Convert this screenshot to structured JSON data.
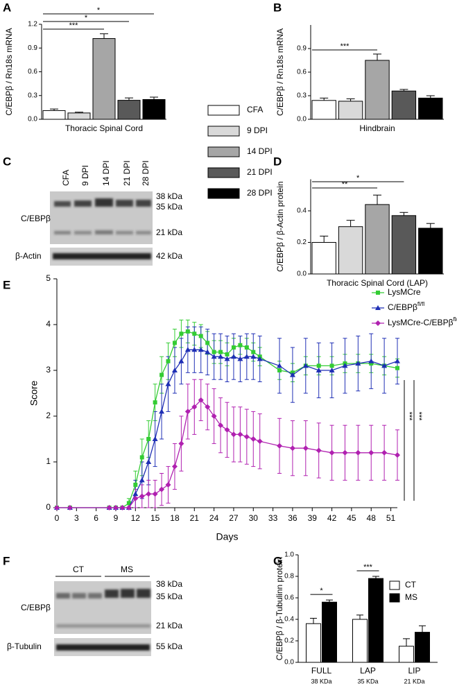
{
  "panel_labels": [
    "A",
    "B",
    "C",
    "D",
    "E",
    "F",
    "G"
  ],
  "chart_data": [
    {
      "type": "bar",
      "ylabel": "C/EBPβ / Rn18s mRNA",
      "xlabel": "Thoracic Spinal Cord",
      "categories": [
        "CFA",
        "9 DPI",
        "14 DPI",
        "21 DPI",
        "28 DPI"
      ],
      "colors": [
        "#ffffff",
        "#d9d9d9",
        "#a6a6a6",
        "#595959",
        "#000000"
      ],
      "values": [
        0.11,
        0.08,
        1.02,
        0.24,
        0.25
      ],
      "errors": [
        0.02,
        0.01,
        0.06,
        0.03,
        0.03
      ],
      "ylim": [
        0,
        1.2
      ],
      "yticks": [
        {
          "value": 0,
          "label": "0.0"
        },
        0.3,
        0.6,
        0.9,
        1.2
      ],
      "significance": [
        {
          "from": 0,
          "to": 2,
          "label": "***"
        },
        {
          "from": 0,
          "to": 3,
          "label": "*"
        },
        {
          "from": 0,
          "to": 4,
          "label": "*"
        }
      ]
    },
    {
      "type": "bar",
      "ylabel": "C/EBPβ / Rn18s mRNA",
      "xlabel": "Hindbrain",
      "colors": [
        "#ffffff",
        "#d9d9d9",
        "#a6a6a6",
        "#595959",
        "#000000"
      ],
      "values": [
        0.24,
        0.23,
        0.75,
        0.36,
        0.27
      ],
      "errors": [
        0.03,
        0.03,
        0.08,
        0.02,
        0.03
      ],
      "ylim": [
        0,
        1.2
      ],
      "yticks": [
        {
          "value": 0,
          "label": "0.0"
        },
        0.3,
        0.6,
        0.9
      ],
      "significance": [
        {
          "from": 0,
          "to": 2,
          "label": "***"
        }
      ]
    },
    {
      "type": "bar",
      "ylabel": "C/EBPβ / β-Actin protein",
      "xlabel": "Thoracic Spinal Cord (LAP)",
      "colors": [
        "#ffffff",
        "#d9d9d9",
        "#a6a6a6",
        "#595959",
        "#000000"
      ],
      "values": [
        0.2,
        0.3,
        0.44,
        0.37,
        0.29
      ],
      "errors": [
        0.04,
        0.04,
        0.06,
        0.02,
        0.03
      ],
      "ylim": [
        0,
        0.6
      ],
      "yticks": [
        {
          "value": 0,
          "label": "0.0"
        },
        0.2,
        0.4
      ],
      "significance": [
        {
          "from": 0,
          "to": 2,
          "label": "**"
        },
        {
          "from": 0,
          "to": 3,
          "label": "*"
        }
      ]
    },
    {
      "type": "line",
      "xlabel": "Days",
      "ylabel": "Score",
      "x": [
        0,
        2,
        8,
        9,
        10,
        11,
        12,
        13,
        14,
        15,
        16,
        17,
        18,
        19,
        20,
        21,
        22,
        23,
        24,
        25,
        26,
        27,
        28,
        29,
        30,
        31,
        34,
        36,
        38,
        40,
        42,
        44,
        46,
        48,
        50,
        52
      ],
      "xlim": [
        0,
        52
      ],
      "xticks": [
        0,
        3,
        6,
        9,
        12,
        15,
        18,
        21,
        24,
        27,
        30,
        33,
        36,
        39,
        42,
        45,
        48,
        51
      ],
      "ylim": [
        0,
        5
      ],
      "yticks": [
        0,
        1,
        2,
        3,
        4,
        5
      ],
      "series": [
        {
          "name": "LysMCre",
          "color": "#33cc33",
          "marker": "square",
          "values": [
            0,
            0,
            0,
            0,
            0,
            0.1,
            0.5,
            1.1,
            1.5,
            2.3,
            2.9,
            3.2,
            3.6,
            3.8,
            3.85,
            3.8,
            3.75,
            3.6,
            3.4,
            3.4,
            3.35,
            3.5,
            3.55,
            3.5,
            3.4,
            3.3,
            3.0,
            2.95,
            3.1,
            3.1,
            3.1,
            3.15,
            3.15,
            3.15,
            3.1,
            3.05
          ],
          "errors": [
            0,
            0,
            0,
            0,
            0,
            0.1,
            0.3,
            0.4,
            0.4,
            0.4,
            0.4,
            0.4,
            0.3,
            0.3,
            0.25,
            0.25,
            0.25,
            0.25,
            0.25,
            0.25,
            0.25,
            0.2,
            0.2,
            0.2,
            0.2,
            0.2,
            0.2,
            0.2,
            0.2,
            0.2,
            0.2,
            0.2,
            0.2,
            0.2,
            0.2,
            0.2
          ]
        },
        {
          "name": "C/EBPβ",
          "name_superscript": "fl/fl",
          "color": "#1f2fb5",
          "marker": "triangle",
          "values": [
            0,
            0,
            0,
            0,
            0,
            0,
            0.3,
            0.6,
            1.0,
            1.5,
            2.1,
            2.7,
            3.0,
            3.2,
            3.45,
            3.45,
            3.45,
            3.4,
            3.3,
            3.3,
            3.25,
            3.3,
            3.25,
            3.3,
            3.3,
            3.25,
            3.1,
            2.9,
            3.1,
            3.0,
            3.0,
            3.1,
            3.15,
            3.2,
            3.1,
            3.2
          ],
          "errors": [
            0,
            0,
            0,
            0,
            0,
            0,
            0.3,
            0.4,
            0.5,
            0.6,
            0.6,
            0.6,
            0.5,
            0.5,
            0.5,
            0.5,
            0.5,
            0.5,
            0.5,
            0.5,
            0.5,
            0.5,
            0.5,
            0.5,
            0.5,
            0.5,
            0.6,
            0.6,
            0.6,
            0.6,
            0.6,
            0.6,
            0.6,
            0.6,
            0.6,
            0.5
          ]
        },
        {
          "name": "LysMCre-C/EBPβ",
          "name_superscript": "fl/fl",
          "color": "#b020b0",
          "marker": "diamond",
          "values": [
            0,
            0,
            0,
            0,
            0,
            0,
            0.2,
            0.25,
            0.3,
            0.3,
            0.4,
            0.5,
            0.9,
            1.4,
            2.1,
            2.2,
            2.35,
            2.2,
            2.0,
            1.8,
            1.7,
            1.6,
            1.6,
            1.55,
            1.5,
            1.45,
            1.35,
            1.3,
            1.3,
            1.25,
            1.2,
            1.2,
            1.2,
            1.2,
            1.2,
            1.15
          ],
          "errors": [
            0,
            0,
            0,
            0,
            0,
            0,
            0.2,
            0.25,
            0.3,
            0.3,
            0.35,
            0.4,
            0.5,
            0.6,
            0.6,
            0.6,
            0.45,
            0.5,
            0.6,
            0.6,
            0.6,
            0.6,
            0.6,
            0.6,
            0.6,
            0.6,
            0.6,
            0.6,
            0.6,
            0.6,
            0.6,
            0.6,
            0.6,
            0.6,
            0.6,
            0.55
          ]
        }
      ],
      "significance": [
        "***",
        "***"
      ]
    },
    {
      "type": "grouped_bar",
      "ylabel": "C/EBPβ / β-Tubulinn protein",
      "categories": [
        "FULL",
        "LAP",
        "LIP"
      ],
      "category_sublabels": [
        "38 KDa",
        "35 KDa",
        "21 KDa"
      ],
      "series": [
        {
          "name": "CT",
          "color": "#ffffff",
          "values": [
            0.36,
            0.4,
            0.15
          ],
          "errors": [
            0.05,
            0.04,
            0.07
          ]
        },
        {
          "name": "MS",
          "color": "#000000",
          "values": [
            0.56,
            0.78,
            0.28
          ],
          "errors": [
            0.02,
            0.02,
            0.06
          ]
        }
      ],
      "ylim": [
        0,
        1
      ],
      "yticks": [
        {
          "value": 0,
          "label": "0.0"
        },
        0.2,
        0.4,
        0.6,
        0.8,
        {
          "value": 1,
          "label": "1.0"
        }
      ],
      "significance": [
        {
          "category": 0,
          "label": "*"
        },
        {
          "category": 1,
          "label": "***"
        }
      ]
    }
  ],
  "blots": [
    {
      "lanes": [
        "CFA",
        "9 DPI",
        "14 DPI",
        "21 DPI",
        "28 DPI"
      ],
      "rows": [
        "C/EBPβ",
        "β-Actin"
      ],
      "markers": [
        "38 kDa",
        "35 kDa",
        "21 kDa",
        "42 kDa"
      ]
    },
    {
      "groups": [
        "CT",
        "MS"
      ],
      "rows": [
        "C/EBPβ",
        "β-Tubulin"
      ],
      "markers": [
        "38 kDa",
        "35 kDa",
        "21 kDa",
        "55 kDa"
      ]
    }
  ]
}
